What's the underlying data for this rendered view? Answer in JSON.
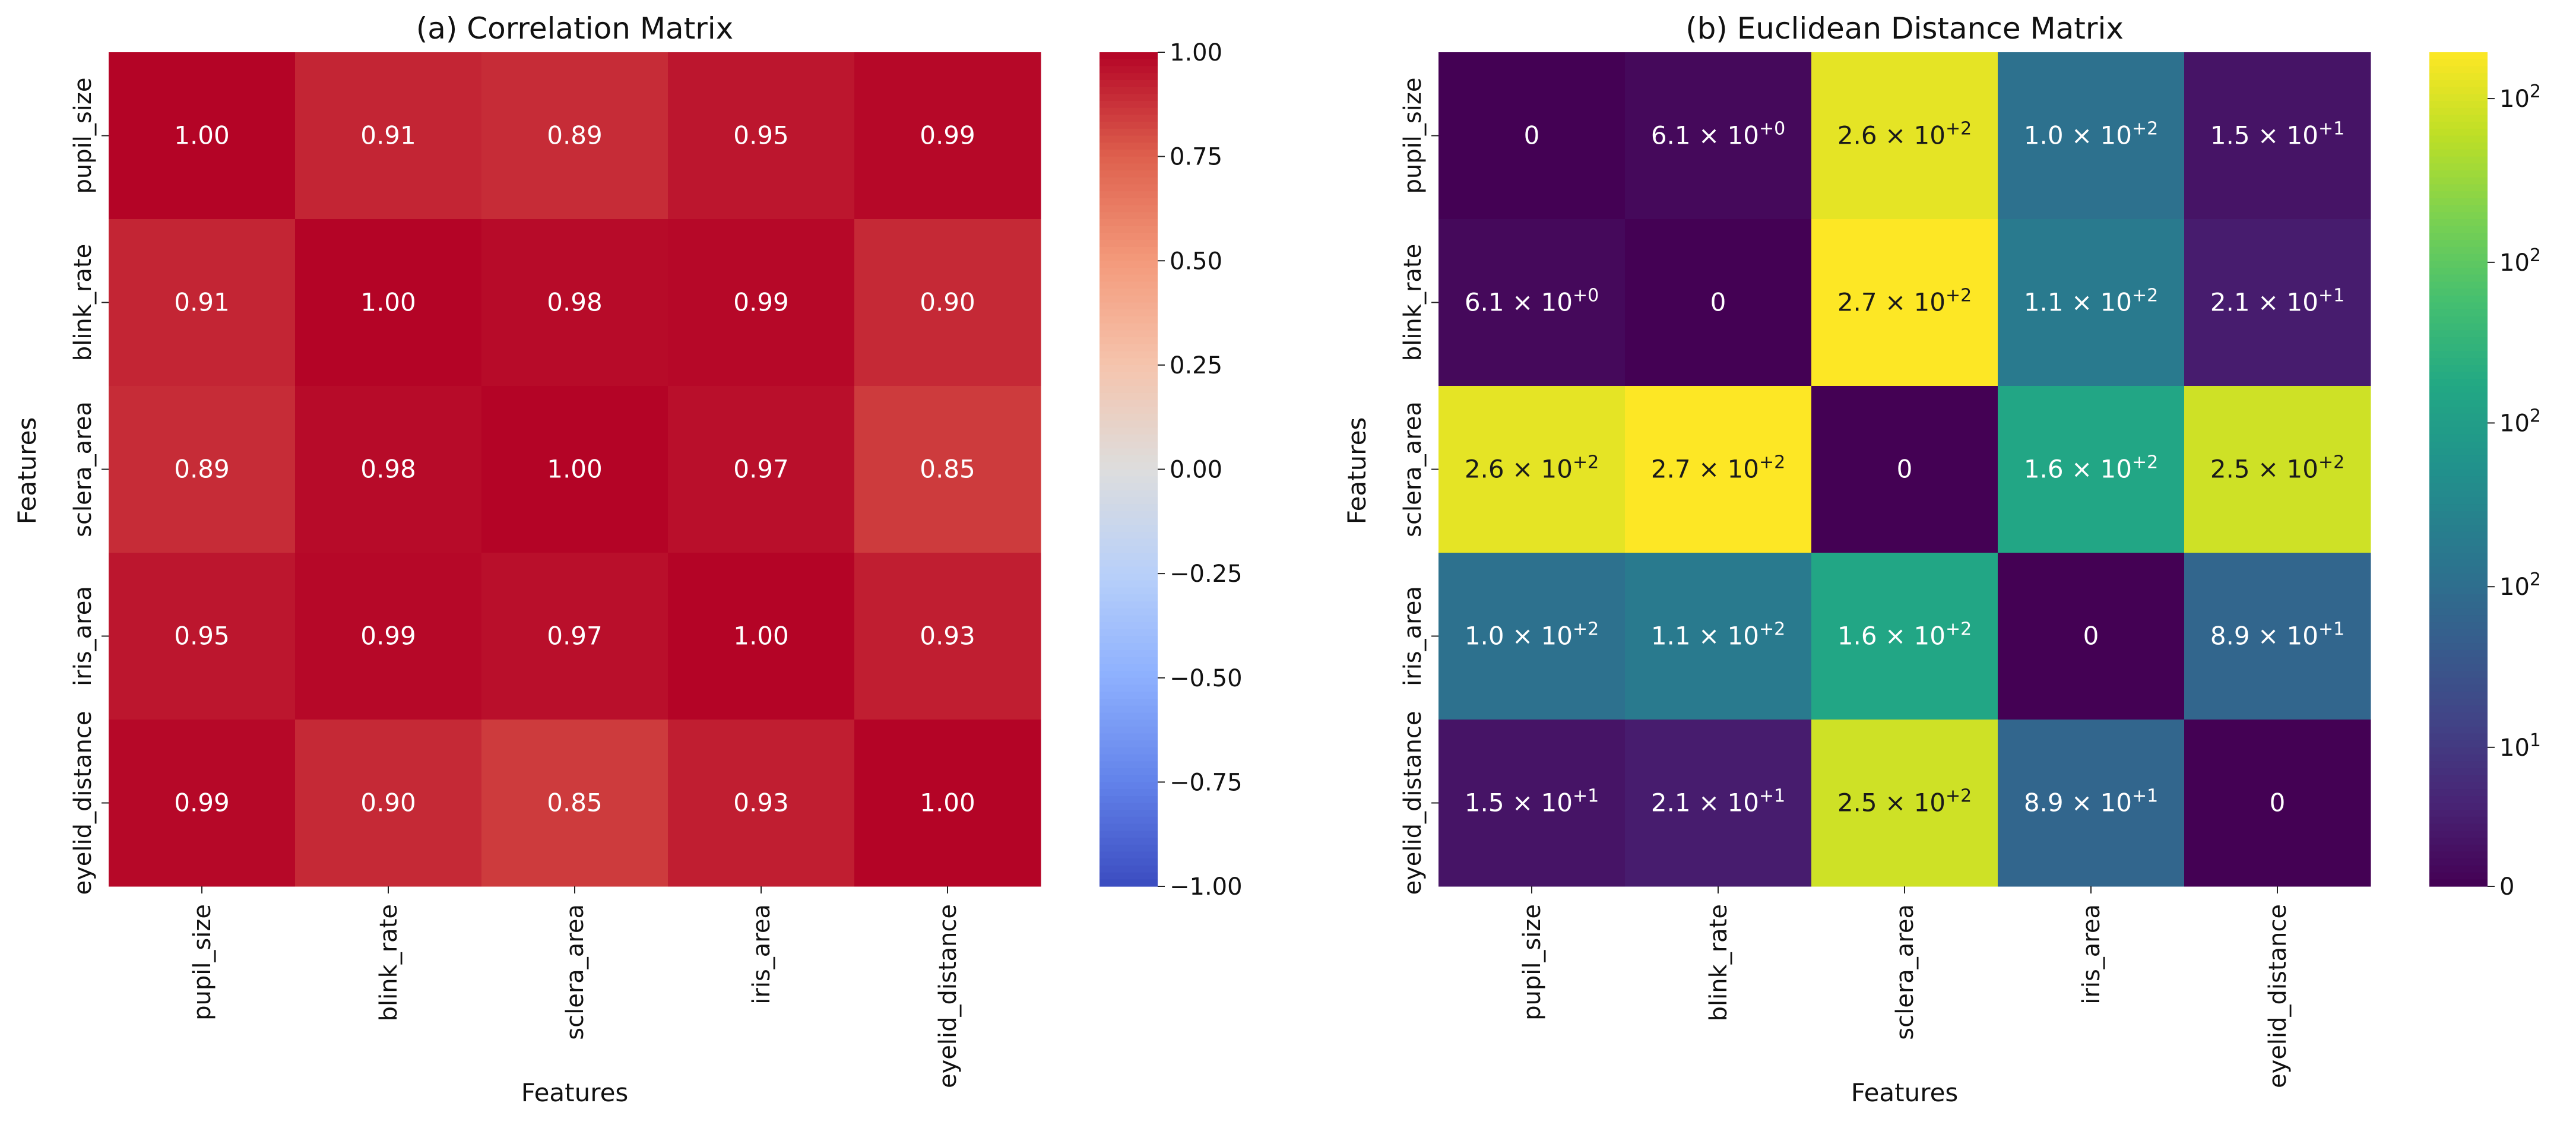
{
  "chart_data": [
    {
      "type": "heatmap",
      "title": "(a) Correlation Matrix",
      "xlabel": "Features",
      "ylabel": "Features",
      "x_categories": [
        "pupil_size",
        "blink_rate",
        "sclera_area",
        "iris_area",
        "eyelid_distance"
      ],
      "y_categories": [
        "pupil_size",
        "blink_rate",
        "sclera_area",
        "iris_area",
        "eyelid_distance"
      ],
      "values": [
        [
          1.0,
          0.91,
          0.89,
          0.95,
          0.99
        ],
        [
          0.91,
          1.0,
          0.98,
          0.99,
          0.9
        ],
        [
          0.89,
          0.98,
          1.0,
          0.97,
          0.85
        ],
        [
          0.95,
          0.99,
          0.97,
          1.0,
          0.93
        ],
        [
          0.99,
          0.9,
          0.85,
          0.93,
          1.0
        ]
      ],
      "annotations": [
        [
          "1.00",
          "0.91",
          "0.89",
          "0.95",
          "0.99"
        ],
        [
          "0.91",
          "1.00",
          "0.98",
          "0.99",
          "0.90"
        ],
        [
          "0.89",
          "0.98",
          "1.00",
          "0.97",
          "0.85"
        ],
        [
          "0.95",
          "0.99",
          "0.97",
          "1.00",
          "0.93"
        ],
        [
          "0.99",
          "0.90",
          "0.85",
          "0.93",
          "1.00"
        ]
      ],
      "colormap": "coolwarm",
      "vmin": -1,
      "vmax": 1,
      "colorbar_ticks": [
        1.0,
        0.75,
        0.5,
        0.25,
        0.0,
        -0.25,
        -0.5,
        -0.75,
        -1.0
      ],
      "colorbar_tick_labels": [
        "1.00",
        "0.75",
        "0.50",
        "0.25",
        "0.00",
        "−0.25",
        "−0.50",
        "−0.75",
        "−1.00"
      ]
    },
    {
      "type": "heatmap",
      "title": "(b) Euclidean Distance Matrix",
      "xlabel": "Features",
      "ylabel": "Features",
      "x_categories": [
        "pupil_size",
        "blink_rate",
        "sclera_area",
        "iris_area",
        "eyelid_distance"
      ],
      "y_categories": [
        "pupil_size",
        "blink_rate",
        "sclera_area",
        "iris_area",
        "eyelid_distance"
      ],
      "values": [
        [
          0,
          6.1,
          260,
          100,
          15
        ],
        [
          6.1,
          0,
          270,
          110,
          21
        ],
        [
          260,
          270,
          0,
          160,
          250
        ],
        [
          100,
          110,
          160,
          0,
          89
        ],
        [
          15,
          21,
          250,
          89,
          0
        ]
      ],
      "annotations": [
        [
          {
            "m": "0",
            "e": ""
          },
          {
            "m": "6.1",
            "e": "+0"
          },
          {
            "m": "2.6",
            "e": "+2"
          },
          {
            "m": "1.0",
            "e": "+2"
          },
          {
            "m": "1.5",
            "e": "+1"
          }
        ],
        [
          {
            "m": "6.1",
            "e": "+0"
          },
          {
            "m": "0",
            "e": ""
          },
          {
            "m": "2.7",
            "e": "+2"
          },
          {
            "m": "1.1",
            "e": "+2"
          },
          {
            "m": "2.1",
            "e": "+1"
          }
        ],
        [
          {
            "m": "2.6",
            "e": "+2"
          },
          {
            "m": "2.7",
            "e": "+2"
          },
          {
            "m": "0",
            "e": ""
          },
          {
            "m": "1.6",
            "e": "+2"
          },
          {
            "m": "2.5",
            "e": "+2"
          }
        ],
        [
          {
            "m": "1.0",
            "e": "+2"
          },
          {
            "m": "1.1",
            "e": "+2"
          },
          {
            "m": "1.6",
            "e": "+2"
          },
          {
            "m": "0",
            "e": ""
          },
          {
            "m": "8.9",
            "e": "+1"
          }
        ],
        [
          {
            "m": "1.5",
            "e": "+1"
          },
          {
            "m": "2.1",
            "e": "+1"
          },
          {
            "m": "2.5",
            "e": "+2"
          },
          {
            "m": "8.9",
            "e": "+1"
          },
          {
            "m": "0",
            "e": ""
          }
        ]
      ],
      "colormap": "viridis",
      "vmin": 0,
      "vmax": 270,
      "colorbar_ticks": [
        {
          "value": 255,
          "base": "10",
          "exp": "2"
        },
        {
          "value": 202,
          "base": "10",
          "exp": "2"
        },
        {
          "value": 150,
          "base": "10",
          "exp": "2"
        },
        {
          "value": 97,
          "base": "10",
          "exp": "2"
        },
        {
          "value": 45,
          "base": "10",
          "exp": "1"
        },
        {
          "value": 0,
          "base": "0",
          "exp": ""
        }
      ]
    }
  ]
}
